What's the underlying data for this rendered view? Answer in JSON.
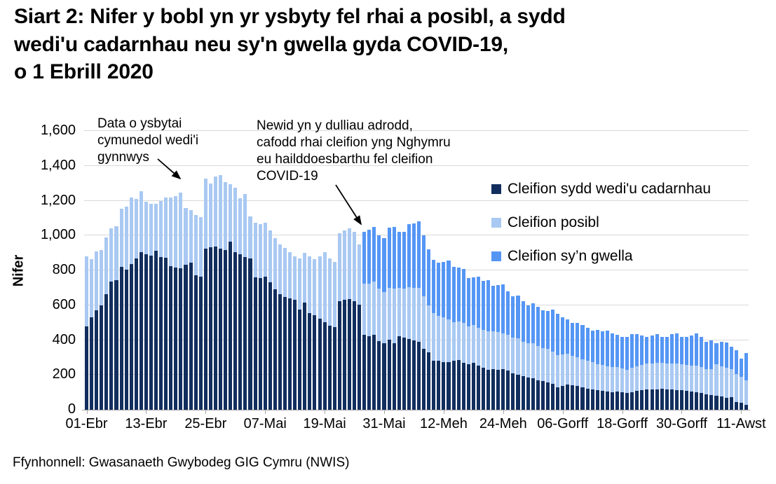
{
  "title": "Siart 2: Nifer y bobl yn yr ysbyty fel rhai a posibl, a sydd\nwedi'u cadarnhau neu sy'n gwella gyda COVID-19,\no 1 Ebrill 2020",
  "source": "Ffynhonnell: Gwasanaeth Gwybodeg GIG Cymru (NWIS)",
  "y_axis": {
    "label": "Nifer"
  },
  "annotations": [
    {
      "text": "Data o ysbytai\ncymunedol wedi'i\ngynnwys"
    },
    {
      "text": "Newid yn y dulliau adrodd,\ncafodd rhai cleifion yng Nghymru\neu hailddoesbarthu fel cleifion\nCOVID-19"
    }
  ],
  "legend": [
    {
      "label": "Cleifion sydd wedi'u cadarnhau"
    },
    {
      "label": "Cleifion posibl"
    },
    {
      "label": "Cleifion sy’n gwella"
    }
  ],
  "colors": {
    "gridline": "#D9D9D9",
    "axis": "#A6A6A6",
    "text": "#000000"
  },
  "chart_data": {
    "type": "bar",
    "stacked": true,
    "grid": true,
    "legend_position": "right-inside",
    "ylim": [
      0,
      1600
    ],
    "x_start_label": "01-Ebr",
    "n_days": 134,
    "y_ticks": [
      {
        "value": 0,
        "label": "0"
      },
      {
        "value": 200,
        "label": "200"
      },
      {
        "value": 400,
        "label": "400"
      },
      {
        "value": 600,
        "label": "600"
      },
      {
        "value": 800,
        "label": "800"
      },
      {
        "value": 1000,
        "label": "1,000"
      },
      {
        "value": 1200,
        "label": "1,200"
      },
      {
        "value": 1400,
        "label": "1,400"
      },
      {
        "value": 1600,
        "label": "1,600"
      }
    ],
    "x_ticks": [
      {
        "day": 1,
        "label": "01-Ebr"
      },
      {
        "day": 13,
        "label": "13-Ebr"
      },
      {
        "day": 25,
        "label": "25-Ebr"
      },
      {
        "day": 37,
        "label": "07-Mai"
      },
      {
        "day": 49,
        "label": "19-Mai"
      },
      {
        "day": 61,
        "label": "31-Mai"
      },
      {
        "day": 73,
        "label": "12-Meh"
      },
      {
        "day": 85,
        "label": "24-Meh"
      },
      {
        "day": 97,
        "label": "06-Gorff"
      },
      {
        "day": 109,
        "label": "18-Gorff"
      },
      {
        "day": 121,
        "label": "30-Gorff"
      },
      {
        "day": 133,
        "label": "11-Awst"
      }
    ],
    "series": [
      {
        "name": "Cleifion sydd wedi'u cadarnhau",
        "key": "cadarnhau",
        "color": "#122E5E",
        "values": [
          480,
          530,
          570,
          600,
          665,
          735,
          745,
          820,
          805,
          835,
          870,
          905,
          892,
          884,
          912,
          876,
          872,
          824,
          816,
          812,
          832,
          844,
          772,
          764,
          924,
          932,
          937,
          924,
          918,
          965,
          905,
          892,
          876,
          870,
          760,
          755,
          765,
          730,
          692,
          665,
          648,
          638,
          630,
          576,
          616,
          556,
          543,
          523,
          503,
          483,
          476,
          623,
          630,
          637,
          623,
          603,
          429,
          422,
          429,
          395,
          382,
          402,
          382,
          422,
          415,
          408,
          400,
          390,
          350,
          330,
          281,
          281,
          273,
          273,
          280,
          285,
          270,
          262,
          270,
          255,
          240,
          230,
          235,
          228,
          232,
          225,
          210,
          200,
          195,
          185,
          180,
          170,
          165,
          158,
          150,
          130,
          138,
          145,
          140,
          135,
          128,
          122,
          118,
          112,
          108,
          105,
          102,
          105,
          100,
          95,
          100,
          108,
          112,
          118,
          116,
          118,
          120,
          118,
          116,
          114,
          112,
          108,
          105,
          100,
          95,
          90,
          85,
          80,
          75,
          70,
          72,
          45,
          40,
          30
        ]
      },
      {
        "name": "Cleifion posibl",
        "key": "posibl",
        "color": "#A9C9F2",
        "values": [
          400,
          335,
          340,
          315,
          325,
          305,
          310,
          335,
          360,
          385,
          340,
          350,
          303,
          296,
          268,
          324,
          346,
          394,
          410,
          434,
          326,
          302,
          346,
          342,
          403,
          368,
          403,
          423,
          389,
          329,
          369,
          322,
          364,
          240,
          315,
          310,
          310,
          300,
          293,
          285,
          282,
          267,
          250,
          294,
          284,
          324,
          322,
          357,
          402,
          387,
          374,
          392,
          400,
          403,
          397,
          347,
          295,
          300,
          305,
          300,
          295,
          298,
          313,
          278,
          280,
          297,
          300,
          310,
          300,
          270,
          274,
          258,
          257,
          247,
          223,
          220,
          230,
          218,
          215,
          215,
          220,
          220,
          215,
          217,
          208,
          205,
          205,
          210,
          195,
          195,
          200,
          195,
          190,
          192,
          185,
          185,
          180,
          175,
          170,
          165,
          162,
          158,
          155,
          150,
          148,
          145,
          142,
          140,
          138,
          135,
          140,
          142,
          145,
          148,
          150,
          152,
          150,
          148,
          150,
          152,
          150,
          148,
          150,
          155,
          150,
          145,
          150,
          180,
          175,
          170,
          160,
          160,
          150,
          140
        ]
      },
      {
        "name": "Cleifion sy’n gwella",
        "key": "gwella",
        "color": "#5596F5",
        "values": [
          0,
          0,
          0,
          0,
          0,
          0,
          0,
          0,
          0,
          0,
          0,
          0,
          0,
          0,
          0,
          0,
          0,
          0,
          0,
          0,
          0,
          0,
          0,
          0,
          0,
          0,
          0,
          0,
          0,
          0,
          0,
          0,
          0,
          0,
          0,
          0,
          0,
          0,
          0,
          0,
          0,
          0,
          0,
          0,
          0,
          0,
          0,
          0,
          0,
          0,
          0,
          0,
          0,
          0,
          0,
          0,
          296,
          313,
          316,
          305,
          308,
          345,
          355,
          320,
          325,
          360,
          370,
          380,
          350,
          320,
          305,
          306,
          320,
          335,
          317,
          310,
          310,
          275,
          275,
          295,
          280,
          295,
          260,
          270,
          280,
          250,
          235,
          245,
          235,
          220,
          230,
          225,
          215,
          215,
          240,
          235,
          212,
          200,
          190,
          200,
          195,
          190,
          182,
          198,
          194,
          205,
          196,
          185,
          182,
          190,
          195,
          185,
          168,
          154,
          159,
          165,
          150,
          154,
          168,
          174,
          158,
          164,
          170,
          185,
          175,
          155,
          165,
          120,
          140,
          145,
          128,
          135,
          105,
          155
        ]
      }
    ]
  }
}
